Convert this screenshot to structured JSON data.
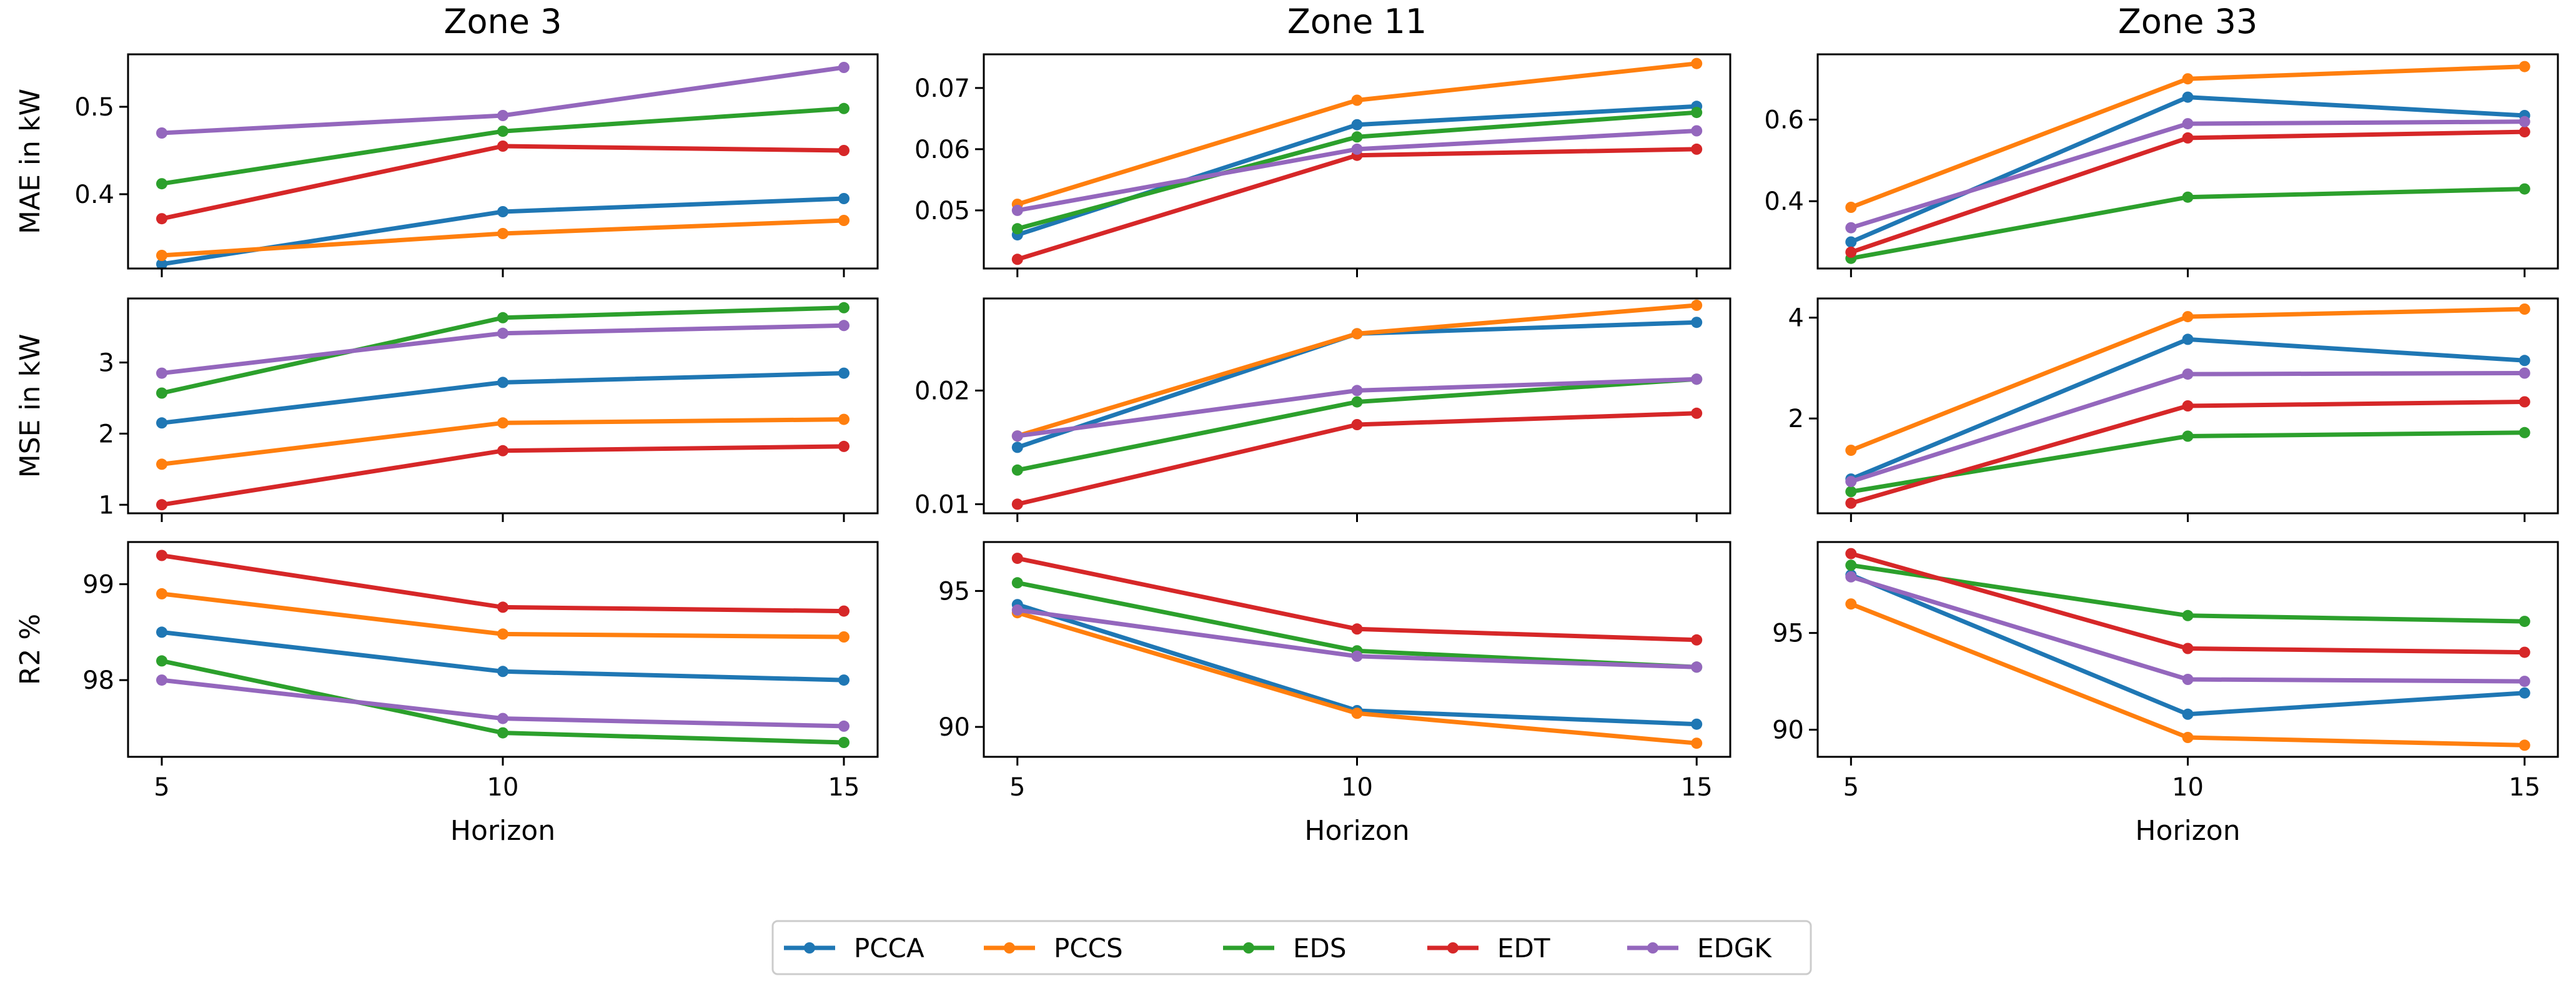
{
  "chart_data": {
    "type": "line",
    "x": [
      5,
      10,
      15
    ],
    "xlabel": "Horizon",
    "zones": [
      "Zone 3",
      "Zone 11",
      "Zone 33"
    ],
    "metrics": [
      {
        "key": "MAE",
        "ylabel": "MAE in kW"
      },
      {
        "key": "MSE",
        "ylabel": "MSE in kW"
      },
      {
        "key": "R2",
        "ylabel": "R2 %"
      }
    ],
    "series_names": [
      "PCCA",
      "PCCS",
      "EDS",
      "EDT",
      "EDGK"
    ],
    "colors": {
      "PCCA": "#1f77b4",
      "PCCS": "#ff7f0e",
      "EDS": "#2ca02c",
      "EDT": "#d62728",
      "EDGK": "#9467bd"
    },
    "panels": [
      {
        "zone": "Zone 3",
        "metric": "MAE",
        "ylim": [
          0.315,
          0.56
        ],
        "yticks": [
          "0.4",
          "0.5"
        ],
        "ytick_values": [
          0.4,
          0.5
        ],
        "series": [
          {
            "name": "PCCA",
            "values": [
              0.32,
              0.38,
              0.395
            ]
          },
          {
            "name": "PCCS",
            "values": [
              0.33,
              0.355,
              0.37
            ]
          },
          {
            "name": "EDS",
            "values": [
              0.412,
              0.472,
              0.498
            ]
          },
          {
            "name": "EDT",
            "values": [
              0.372,
              0.455,
              0.45
            ]
          },
          {
            "name": "EDGK",
            "values": [
              0.47,
              0.49,
              0.545
            ]
          }
        ]
      },
      {
        "zone": "Zone 11",
        "metric": "MAE",
        "ylim": [
          0.0405,
          0.0755
        ],
        "yticks": [
          "0.05",
          "0.06",
          "0.07"
        ],
        "ytick_values": [
          0.05,
          0.06,
          0.07
        ],
        "series": [
          {
            "name": "PCCA",
            "values": [
              0.046,
              0.064,
              0.067
            ]
          },
          {
            "name": "PCCS",
            "values": [
              0.051,
              0.068,
              0.074
            ]
          },
          {
            "name": "EDS",
            "values": [
              0.047,
              0.062,
              0.066
            ]
          },
          {
            "name": "EDT",
            "values": [
              0.042,
              0.059,
              0.06
            ]
          },
          {
            "name": "EDGK",
            "values": [
              0.05,
              0.06,
              0.063
            ]
          }
        ]
      },
      {
        "zone": "Zone 33",
        "metric": "MAE",
        "ylim": [
          0.235,
          0.76
        ],
        "yticks": [
          "0.4",
          "0.6"
        ],
        "ytick_values": [
          0.4,
          0.6
        ],
        "series": [
          {
            "name": "PCCA",
            "values": [
              0.3,
              0.655,
              0.61
            ]
          },
          {
            "name": "PCCS",
            "values": [
              0.385,
              0.7,
              0.73
            ]
          },
          {
            "name": "EDS",
            "values": [
              0.26,
              0.41,
              0.43
            ]
          },
          {
            "name": "EDT",
            "values": [
              0.275,
              0.555,
              0.57
            ]
          },
          {
            "name": "EDGK",
            "values": [
              0.335,
              0.59,
              0.595
            ]
          }
        ]
      },
      {
        "zone": "Zone 3",
        "metric": "MSE",
        "ylim": [
          0.88,
          3.9
        ],
        "yticks": [
          "1",
          "2",
          "3"
        ],
        "ytick_values": [
          1,
          2,
          3
        ],
        "series": [
          {
            "name": "PCCA",
            "values": [
              2.15,
              2.72,
              2.85
            ]
          },
          {
            "name": "PCCS",
            "values": [
              1.57,
              2.15,
              2.2
            ]
          },
          {
            "name": "EDS",
            "values": [
              2.57,
              3.63,
              3.77
            ]
          },
          {
            "name": "EDT",
            "values": [
              1.0,
              1.76,
              1.82
            ]
          },
          {
            "name": "EDGK",
            "values": [
              2.85,
              3.41,
              3.52
            ]
          }
        ]
      },
      {
        "zone": "Zone 11",
        "metric": "MSE",
        "ylim": [
          0.0092,
          0.0281
        ],
        "yticks": [
          "0.01",
          "0.02"
        ],
        "ytick_values": [
          0.01,
          0.02
        ],
        "series": [
          {
            "name": "PCCA",
            "values": [
              0.015,
              0.025,
              0.026
            ]
          },
          {
            "name": "PCCS",
            "values": [
              0.016,
              0.025,
              0.0275
            ]
          },
          {
            "name": "EDS",
            "values": [
              0.013,
              0.019,
              0.021
            ]
          },
          {
            "name": "EDT",
            "values": [
              0.01,
              0.017,
              0.018
            ]
          },
          {
            "name": "EDGK",
            "values": [
              0.016,
              0.02,
              0.021
            ]
          }
        ]
      },
      {
        "zone": "Zone 33",
        "metric": "MSE",
        "ylim": [
          0.12,
          4.38
        ],
        "yticks": [
          "2",
          "4"
        ],
        "ytick_values": [
          2,
          4
        ],
        "series": [
          {
            "name": "PCCA",
            "values": [
              0.8,
              3.57,
              3.15
            ]
          },
          {
            "name": "PCCS",
            "values": [
              1.37,
              4.02,
              4.17
            ]
          },
          {
            "name": "EDS",
            "values": [
              0.55,
              1.65,
              1.72
            ]
          },
          {
            "name": "EDT",
            "values": [
              0.32,
              2.25,
              2.33
            ]
          },
          {
            "name": "EDGK",
            "values": [
              0.75,
              2.88,
              2.9
            ]
          }
        ]
      },
      {
        "zone": "Zone 3",
        "metric": "R2",
        "ylim": [
          97.2,
          99.44
        ],
        "yticks": [
          "98",
          "99"
        ],
        "ytick_values": [
          98,
          99
        ],
        "series": [
          {
            "name": "PCCA",
            "values": [
              98.5,
              98.09,
              98.0
            ]
          },
          {
            "name": "PCCS",
            "values": [
              98.9,
              98.48,
              98.45
            ]
          },
          {
            "name": "EDS",
            "values": [
              98.2,
              97.45,
              97.35
            ]
          },
          {
            "name": "EDT",
            "values": [
              99.3,
              98.76,
              98.72
            ]
          },
          {
            "name": "EDGK",
            "values": [
              98.0,
              97.6,
              97.52
            ]
          }
        ]
      },
      {
        "zone": "Zone 11",
        "metric": "R2",
        "ylim": [
          88.9,
          96.8
        ],
        "yticks": [
          "90",
          "95"
        ],
        "ytick_values": [
          90,
          95
        ],
        "series": [
          {
            "name": "PCCA",
            "values": [
              94.5,
              90.6,
              90.1
            ]
          },
          {
            "name": "PCCS",
            "values": [
              94.2,
              90.5,
              89.4
            ]
          },
          {
            "name": "EDS",
            "values": [
              95.3,
              92.8,
              92.2
            ]
          },
          {
            "name": "EDT",
            "values": [
              96.2,
              93.6,
              93.2
            ]
          },
          {
            "name": "EDGK",
            "values": [
              94.3,
              92.6,
              92.2
            ]
          }
        ]
      },
      {
        "zone": "Zone 33",
        "metric": "R2",
        "ylim": [
          88.6,
          99.7
        ],
        "yticks": [
          "90",
          "95"
        ],
        "ytick_values": [
          90,
          95
        ],
        "series": [
          {
            "name": "PCCA",
            "values": [
              98.0,
              90.8,
              91.9
            ]
          },
          {
            "name": "PCCS",
            "values": [
              96.5,
              89.6,
              89.2
            ]
          },
          {
            "name": "EDS",
            "values": [
              98.5,
              95.9,
              95.6
            ]
          },
          {
            "name": "EDT",
            "values": [
              99.1,
              94.2,
              94.0
            ]
          },
          {
            "name": "EDGK",
            "values": [
              97.9,
              92.6,
              92.5
            ]
          }
        ]
      }
    ],
    "legend": {
      "placement": "bottom-center",
      "entries": [
        "PCCA",
        "PCCS",
        "EDS",
        "EDT",
        "EDGK"
      ]
    }
  }
}
